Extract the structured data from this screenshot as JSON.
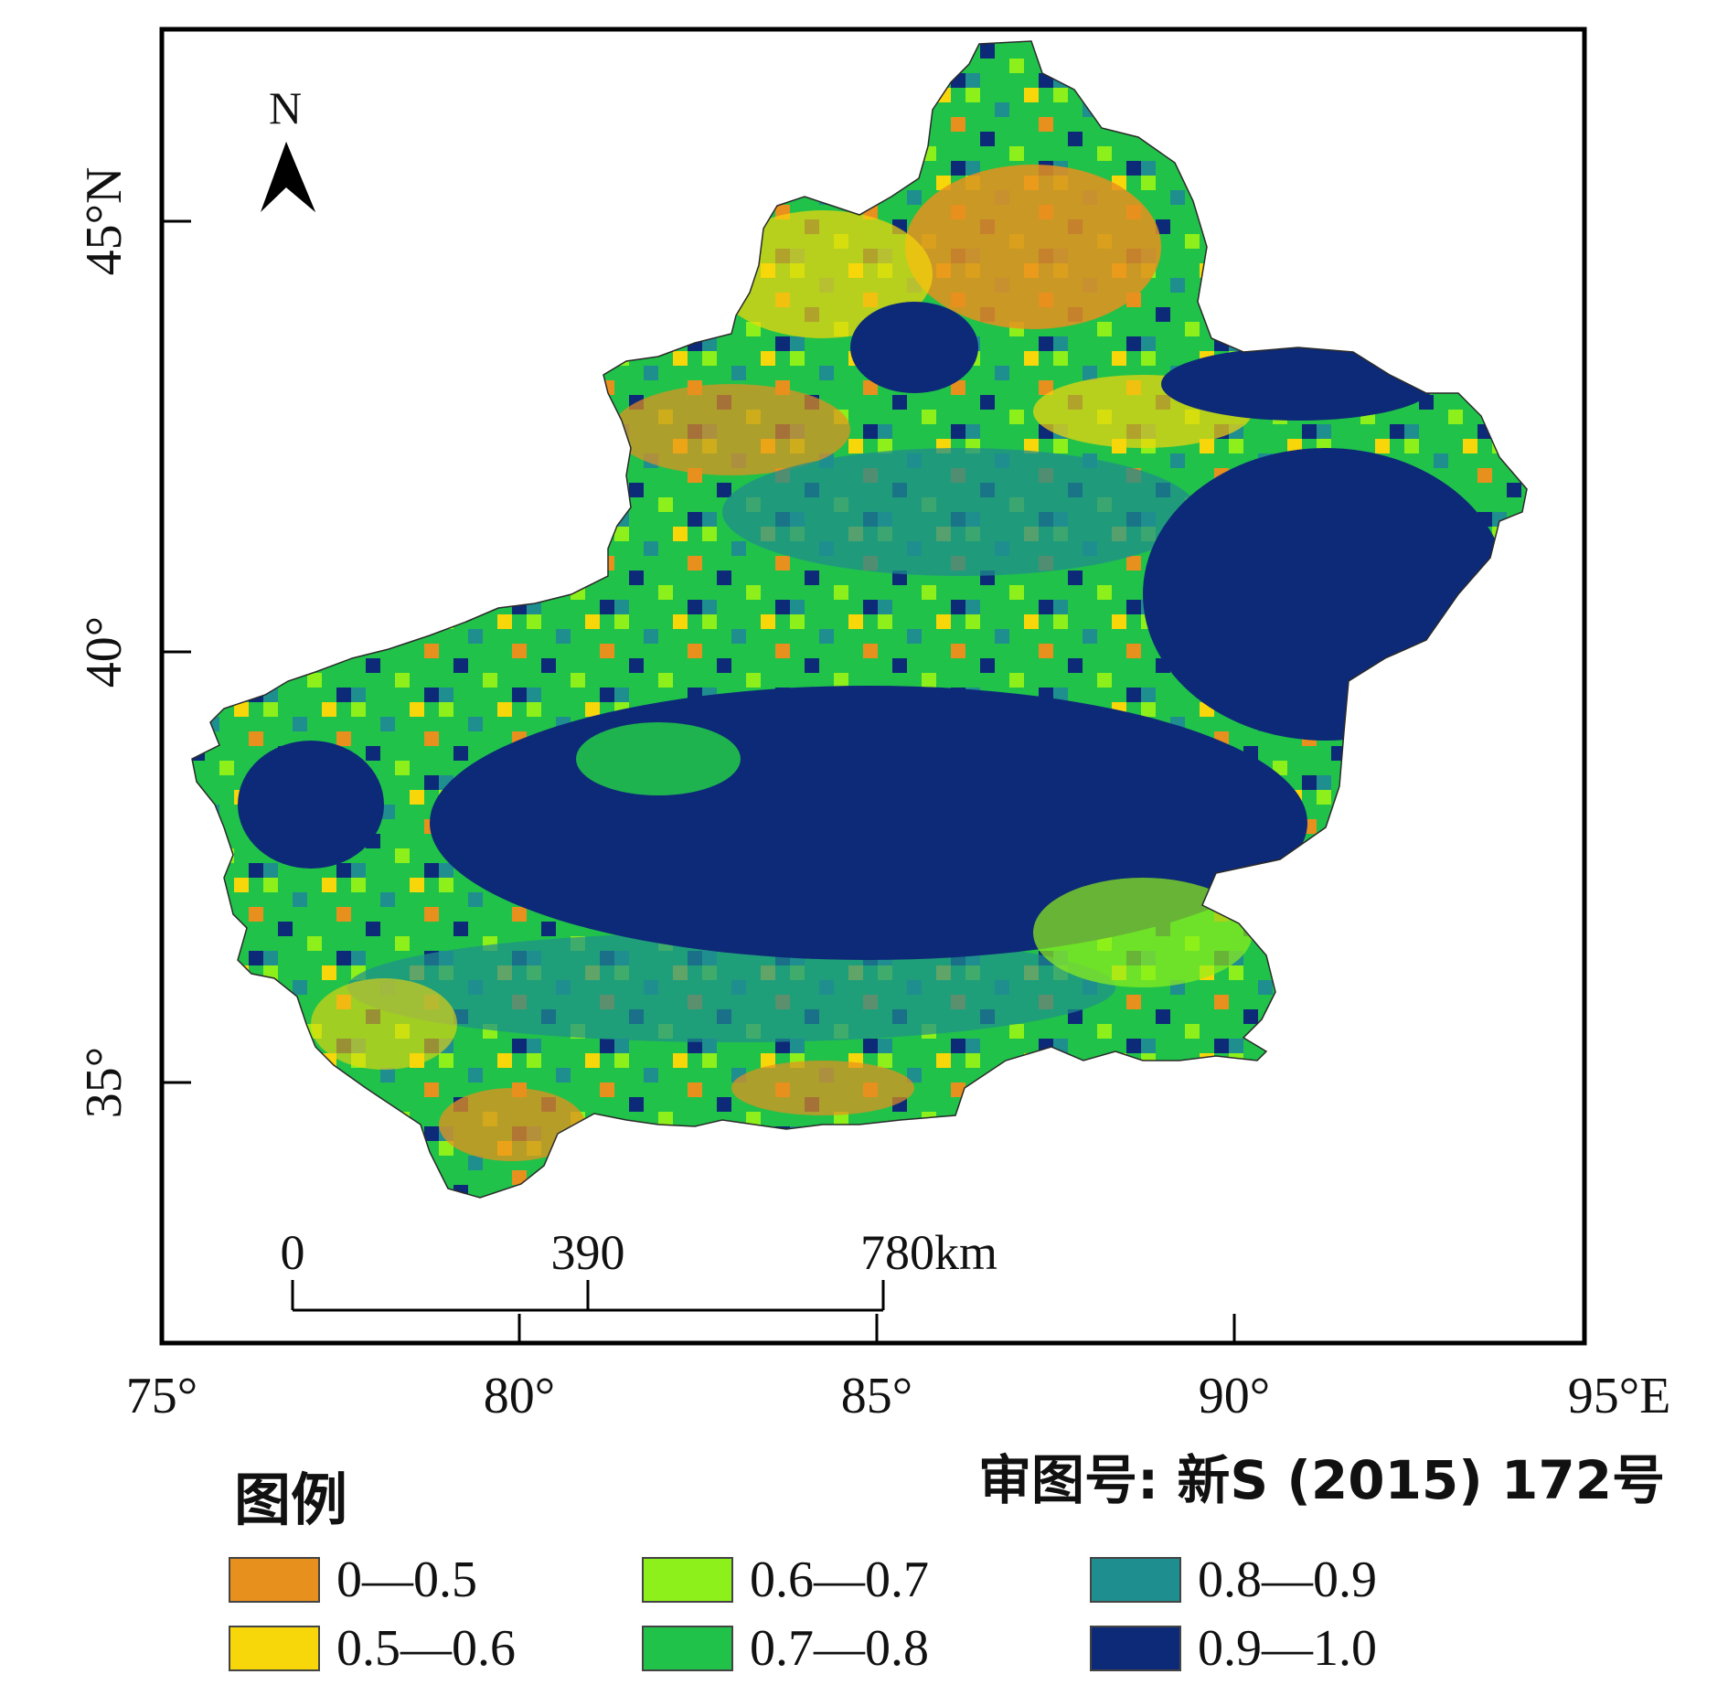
{
  "map": {
    "north_label": "N",
    "lat_labels": [
      {
        "text": "45°N",
        "value": 45
      },
      {
        "text": "40°",
        "value": 40
      },
      {
        "text": "35°",
        "value": 35
      }
    ],
    "lon_labels": [
      {
        "text": "75°",
        "value": 75
      },
      {
        "text": "80°",
        "value": 80
      },
      {
        "text": "85°",
        "value": 85
      },
      {
        "text": "90°",
        "value": 90
      },
      {
        "text": "95°E",
        "value": 95
      }
    ],
    "extent": {
      "lon": [
        75,
        95
      ],
      "lat": [
        33,
        47
      ]
    },
    "scale_bar": {
      "labels": [
        "0",
        "390",
        "780km"
      ],
      "values_km": [
        0,
        390,
        780
      ]
    },
    "approval_text": "审图号: 新S (2015) 172号"
  },
  "legend": {
    "title": "图例",
    "items": [
      {
        "label": "0—0.5",
        "color": "#e8901e"
      },
      {
        "label": "0.5—0.6",
        "color": "#f7d60a"
      },
      {
        "label": "0.6—0.7",
        "color": "#8ef01a"
      },
      {
        "label": "0.7—0.8",
        "color": "#20c24a"
      },
      {
        "label": "0.8—0.9",
        "color": "#1f8e8e"
      },
      {
        "label": "0.9—1.0",
        "color": "#0d2a78"
      }
    ]
  }
}
